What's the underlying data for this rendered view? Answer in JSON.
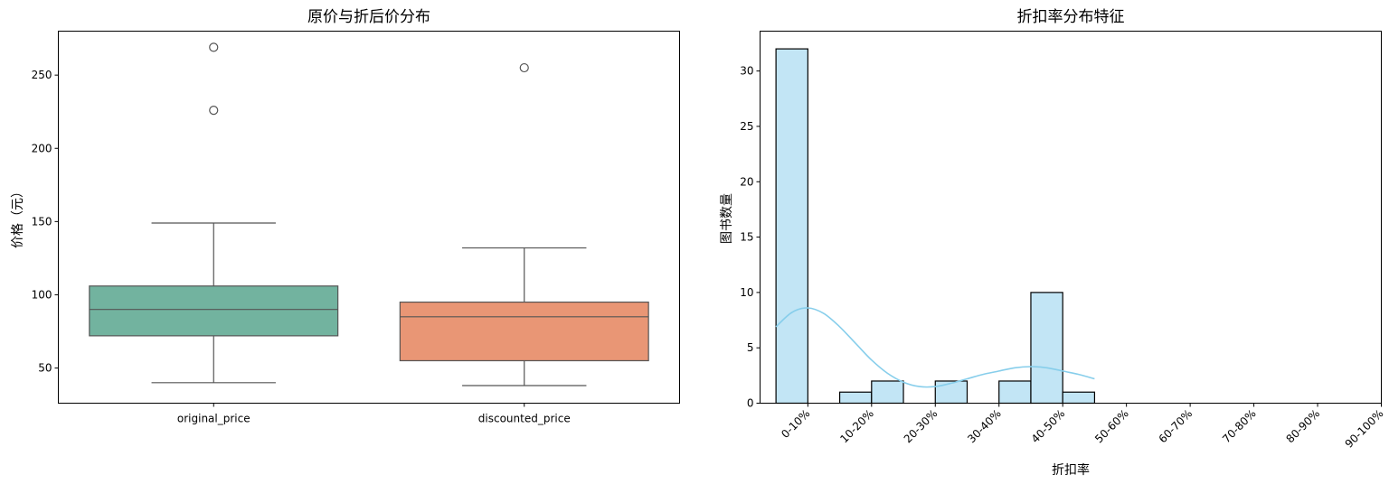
{
  "chart_data": [
    {
      "type": "box",
      "title": "原价与折后价分布",
      "xlabel": "",
      "ylabel": "价格（元）",
      "ylim": [
        26,
        280
      ],
      "yticks": [
        50,
        100,
        150,
        200,
        250
      ],
      "grid": false,
      "categories": [
        "original_price",
        "discounted_price"
      ],
      "boxes": [
        {
          "name": "original_price",
          "whisker_low": 40,
          "q1": 72,
          "median": 90,
          "q3": 106,
          "whisker_high": 149,
          "outliers": [
            226,
            269
          ],
          "color": "#72b39f"
        },
        {
          "name": "discounted_price",
          "whisker_low": 38,
          "q1": 55,
          "median": 85,
          "q3": 95,
          "whisker_high": 132,
          "outliers": [
            255
          ],
          "color": "#e99675"
        }
      ]
    },
    {
      "type": "bar",
      "title": "折扣率分布特征",
      "xlabel": "折扣率",
      "ylabel": "图书数量",
      "ylim": [
        0,
        33.6
      ],
      "yticks": [
        0,
        5,
        10,
        15,
        20,
        25,
        30
      ],
      "grid": false,
      "categories": [
        "0-10%",
        "10-20%",
        "20-30%",
        "30-40%",
        "40-50%",
        "50-60%",
        "60-70%",
        "70-80%",
        "80-90%",
        "90-100%"
      ],
      "bins": [
        {
          "x0": 0,
          "x1": 5,
          "count": 32
        },
        {
          "x0": 5,
          "x1": 10,
          "count": 0
        },
        {
          "x0": 10,
          "x1": 15,
          "count": 1
        },
        {
          "x0": 15,
          "x1": 20,
          "count": 2
        },
        {
          "x0": 20,
          "x1": 25,
          "count": 0
        },
        {
          "x0": 25,
          "x1": 30,
          "count": 2
        },
        {
          "x0": 30,
          "x1": 35,
          "count": 0
        },
        {
          "x0": 35,
          "x1": 40,
          "count": 2
        },
        {
          "x0": 40,
          "x1": 45,
          "count": 10
        },
        {
          "x0": 45,
          "x1": 50,
          "count": 1
        }
      ],
      "kde": {
        "x": [
          0,
          2.5,
          5,
          7.5,
          10,
          12.5,
          15,
          17.5,
          20,
          22.5,
          25,
          27.5,
          30,
          32.5,
          35,
          37.5,
          40,
          42.5,
          45,
          47.5,
          50
        ],
        "y": [
          6.9,
          8.2,
          8.6,
          8.1,
          6.9,
          5.4,
          3.9,
          2.7,
          1.9,
          1.5,
          1.5,
          1.8,
          2.2,
          2.6,
          2.9,
          3.2,
          3.3,
          3.2,
          2.9,
          2.6,
          2.2
        ]
      },
      "bar_color": "#c2e5f5",
      "line_color": "#87ceeb"
    }
  ]
}
